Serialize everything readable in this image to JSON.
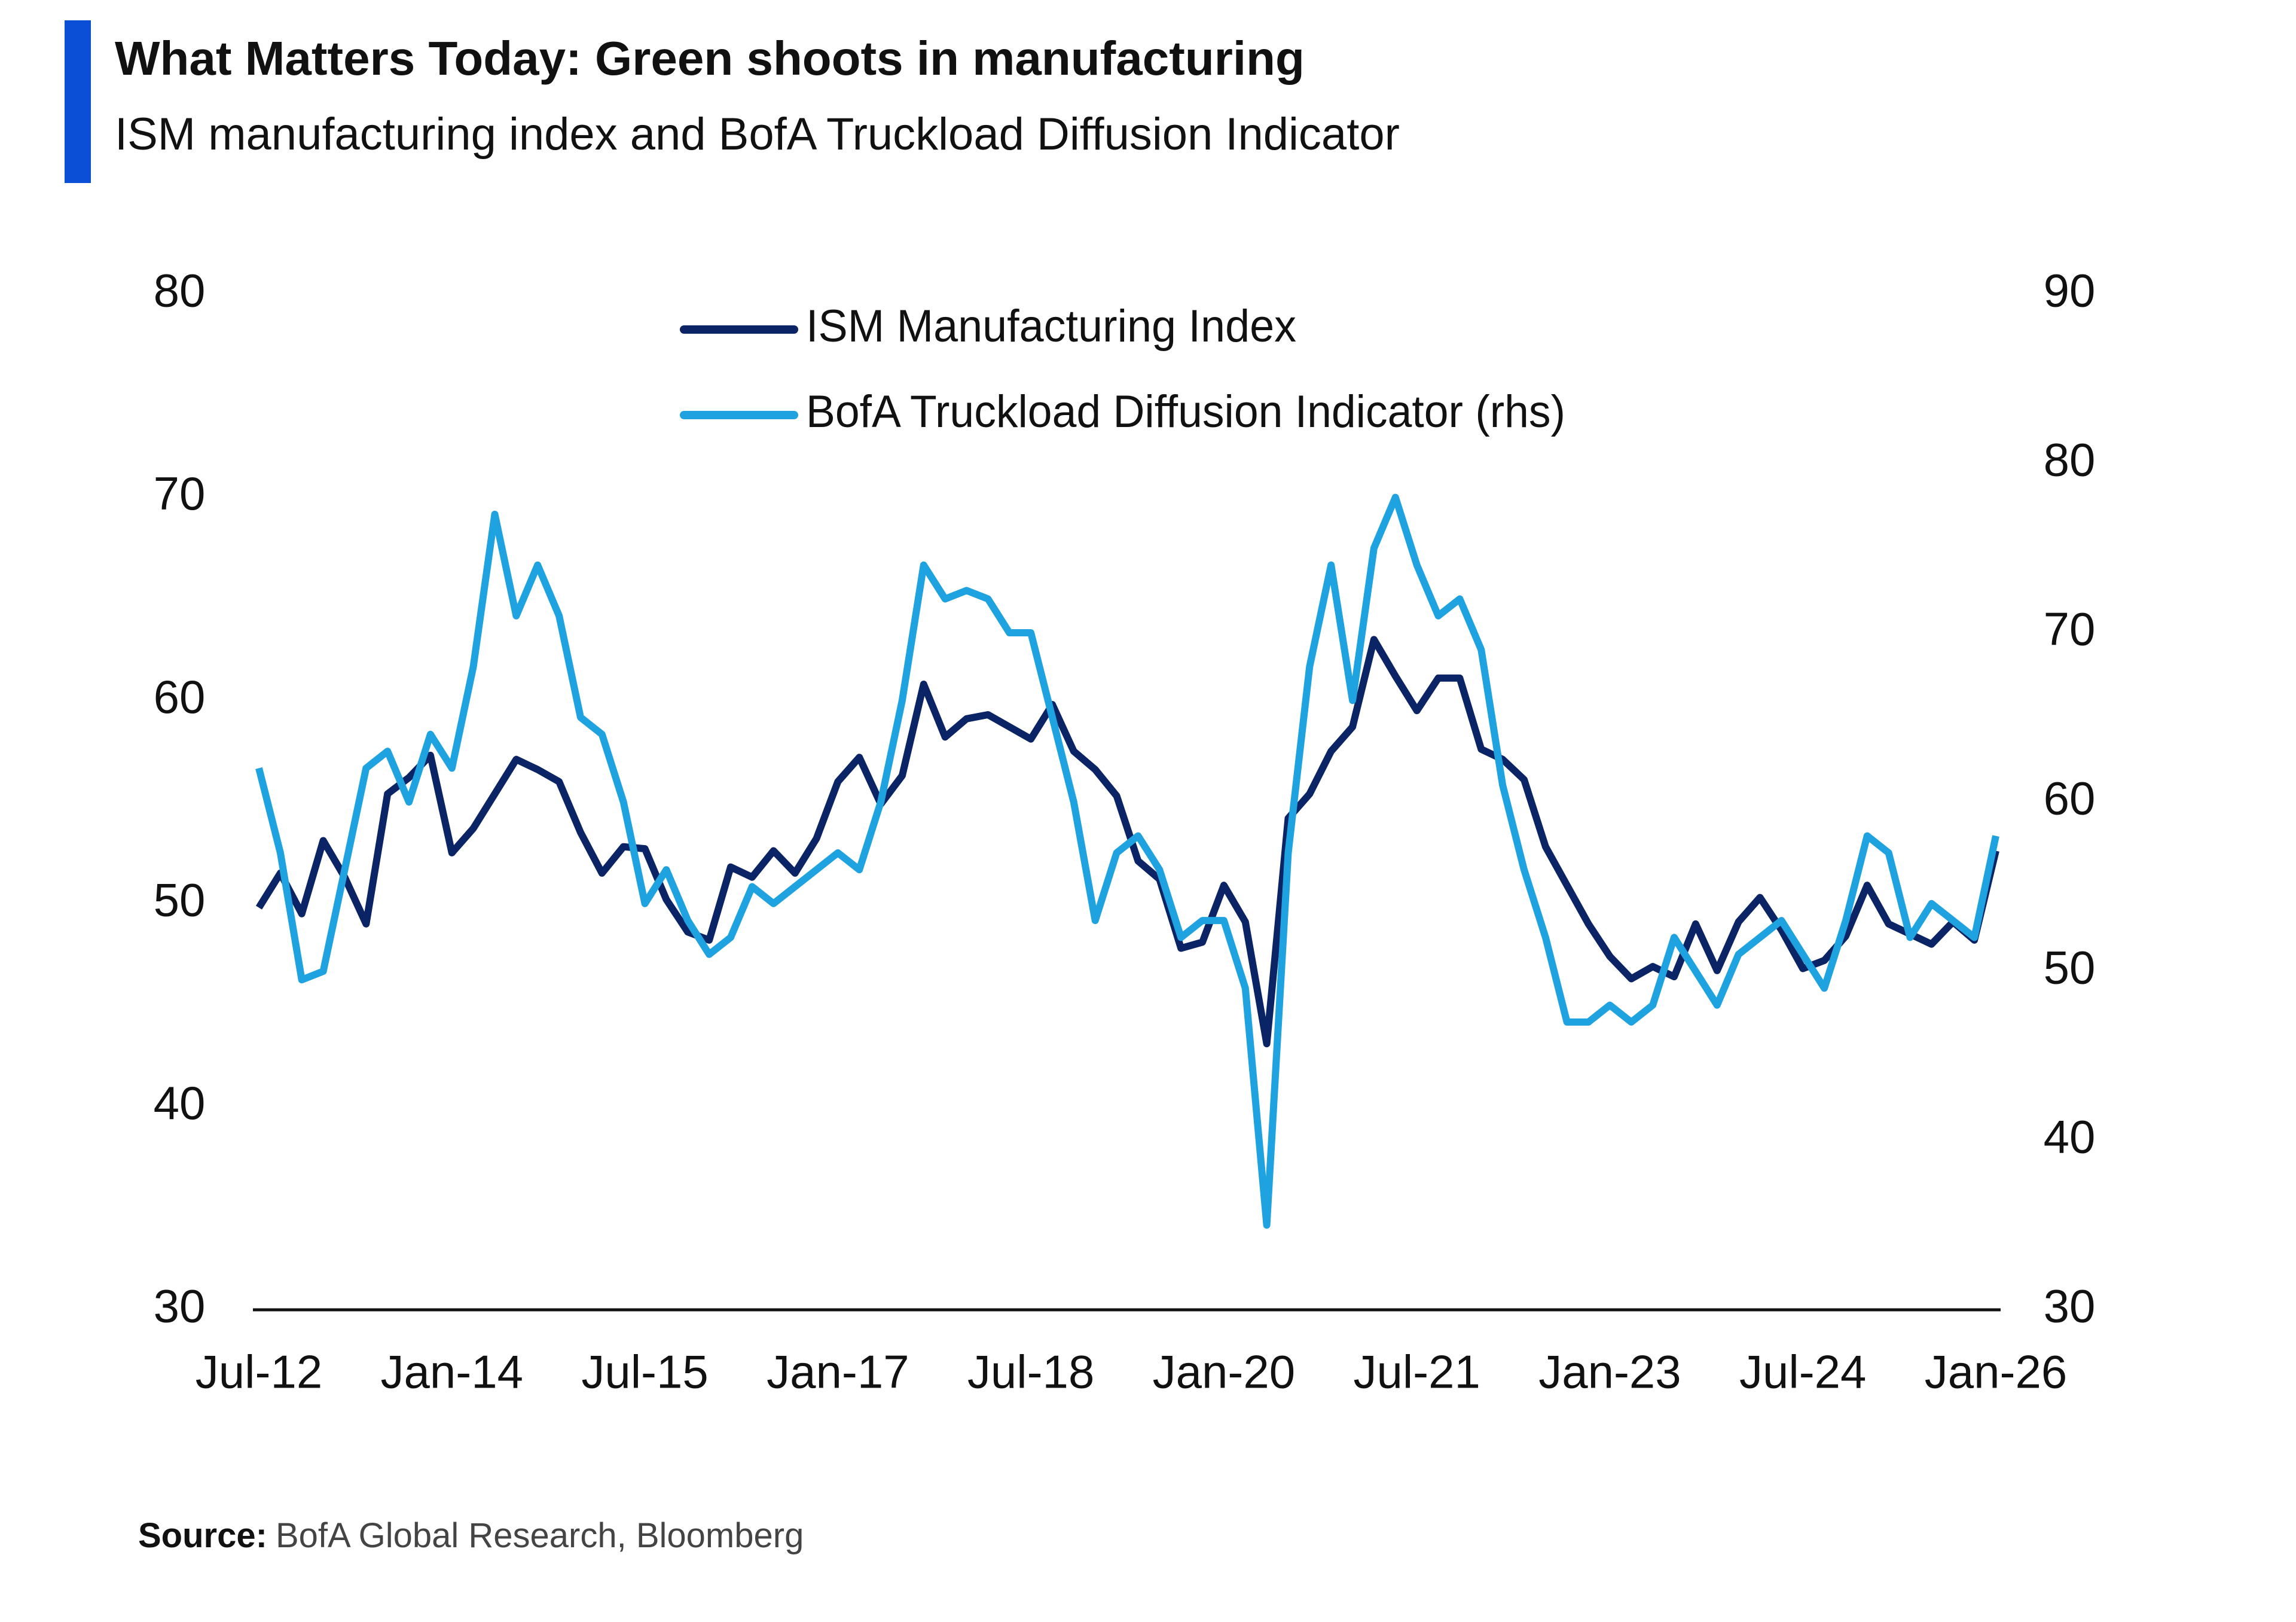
{
  "chart_data": {
    "type": "line",
    "title": "What Matters Today: Green shoots in manufacturing",
    "subtitle": "ISM manufacturing index and BofA Truckload Diffusion Indicator",
    "source_label": "Source:",
    "source_text": "BofA Global Research, Bloomberg",
    "legend": "top-center",
    "grid": false,
    "x": [
      "Jul-12",
      "Sep-12",
      "Nov-12",
      "Jan-13",
      "Mar-13",
      "May-13",
      "Jul-13",
      "Sep-13",
      "Nov-13",
      "Jan-14",
      "Mar-14",
      "May-14",
      "Jul-14",
      "Sep-14",
      "Nov-14",
      "Jan-15",
      "Mar-15",
      "May-15",
      "Jul-15",
      "Sep-15",
      "Nov-15",
      "Jan-16",
      "Mar-16",
      "May-16",
      "Jul-16",
      "Sep-16",
      "Nov-16",
      "Jan-17",
      "Mar-17",
      "May-17",
      "Jul-17",
      "Sep-17",
      "Nov-17",
      "Jan-18",
      "Mar-18",
      "May-18",
      "Jul-18",
      "Sep-18",
      "Nov-18",
      "Jan-19",
      "Mar-19",
      "May-19",
      "Jul-19",
      "Sep-19",
      "Nov-19",
      "Jan-20",
      "Mar-20",
      "May-20",
      "Jul-20",
      "Sep-20",
      "Nov-20",
      "Jan-21",
      "Mar-21",
      "May-21",
      "Jul-21",
      "Sep-21",
      "Nov-21",
      "Jan-22",
      "Mar-22",
      "May-22",
      "Jul-22",
      "Sep-22",
      "Nov-22",
      "Jan-23",
      "Mar-23",
      "May-23",
      "Jul-23",
      "Sep-23",
      "Nov-23",
      "Jan-24",
      "Mar-24",
      "May-24",
      "Jul-24",
      "Sep-24",
      "Nov-24",
      "Jan-25",
      "Mar-25",
      "May-25",
      "Jul-25",
      "Sep-25",
      "Nov-25",
      "Jan-26"
    ],
    "xticks": [
      "Jul-12",
      "Jan-14",
      "Jul-15",
      "Jan-17",
      "Jul-18",
      "Jan-20",
      "Jul-21",
      "Jan-23",
      "Jul-24",
      "Jan-26"
    ],
    "ylim": [
      30,
      80
    ],
    "yticks": [
      30,
      40,
      50,
      60,
      70,
      80
    ],
    "y2lim": [
      30,
      90
    ],
    "y2ticks": [
      30,
      40,
      50,
      60,
      70,
      80,
      90
    ],
    "series": [
      {
        "name": "ISM Manufacturing Index",
        "color": "#0b2466",
        "axis": "y",
        "values": [
          49.8,
          51.5,
          49.5,
          53.1,
          51.3,
          49.0,
          55.4,
          56.2,
          57.3,
          52.5,
          53.7,
          55.4,
          57.1,
          56.6,
          56.0,
          53.5,
          51.5,
          52.8,
          52.7,
          50.2,
          48.6,
          48.2,
          51.8,
          51.3,
          52.6,
          51.5,
          53.2,
          56.0,
          57.2,
          54.9,
          56.3,
          60.8,
          58.2,
          59.1,
          59.3,
          58.7,
          58.1,
          59.8,
          57.5,
          56.6,
          55.3,
          52.1,
          51.2,
          47.8,
          48.1,
          50.9,
          49.1,
          43.1,
          54.2,
          55.4,
          57.5,
          58.7,
          63.0,
          61.2,
          59.5,
          61.1,
          61.1,
          57.6,
          57.1,
          56.1,
          52.8,
          50.9,
          49.0,
          47.4,
          46.3,
          46.9,
          46.4,
          49.0,
          46.7,
          49.1,
          50.3,
          48.7,
          46.8,
          47.2,
          48.4,
          50.9,
          49.0,
          48.5,
          48.0,
          49.1,
          48.2,
          52.6
        ]
      },
      {
        "name": "BofA Truckload Diffusion Indicator (rhs)",
        "color": "#1fa3e0",
        "axis": "y2",
        "values": [
          62,
          57,
          49.5,
          50,
          56,
          62,
          63,
          60,
          64,
          62,
          68,
          77,
          71,
          74,
          71,
          65,
          64,
          60,
          54,
          56,
          53,
          51,
          52,
          55,
          54,
          55,
          56,
          57,
          56,
          60,
          66,
          74,
          72,
          72.5,
          72,
          70,
          70,
          65,
          60,
          53,
          57,
          58,
          56,
          52,
          53,
          53,
          49,
          35,
          57,
          68,
          74,
          66,
          75,
          78,
          74,
          71,
          72,
          69,
          61,
          56,
          52,
          47,
          47,
          48,
          47,
          48,
          52,
          50,
          48,
          51,
          52,
          53,
          51,
          49,
          53,
          58,
          57,
          52,
          54,
          53,
          52,
          58
        ]
      }
    ]
  }
}
